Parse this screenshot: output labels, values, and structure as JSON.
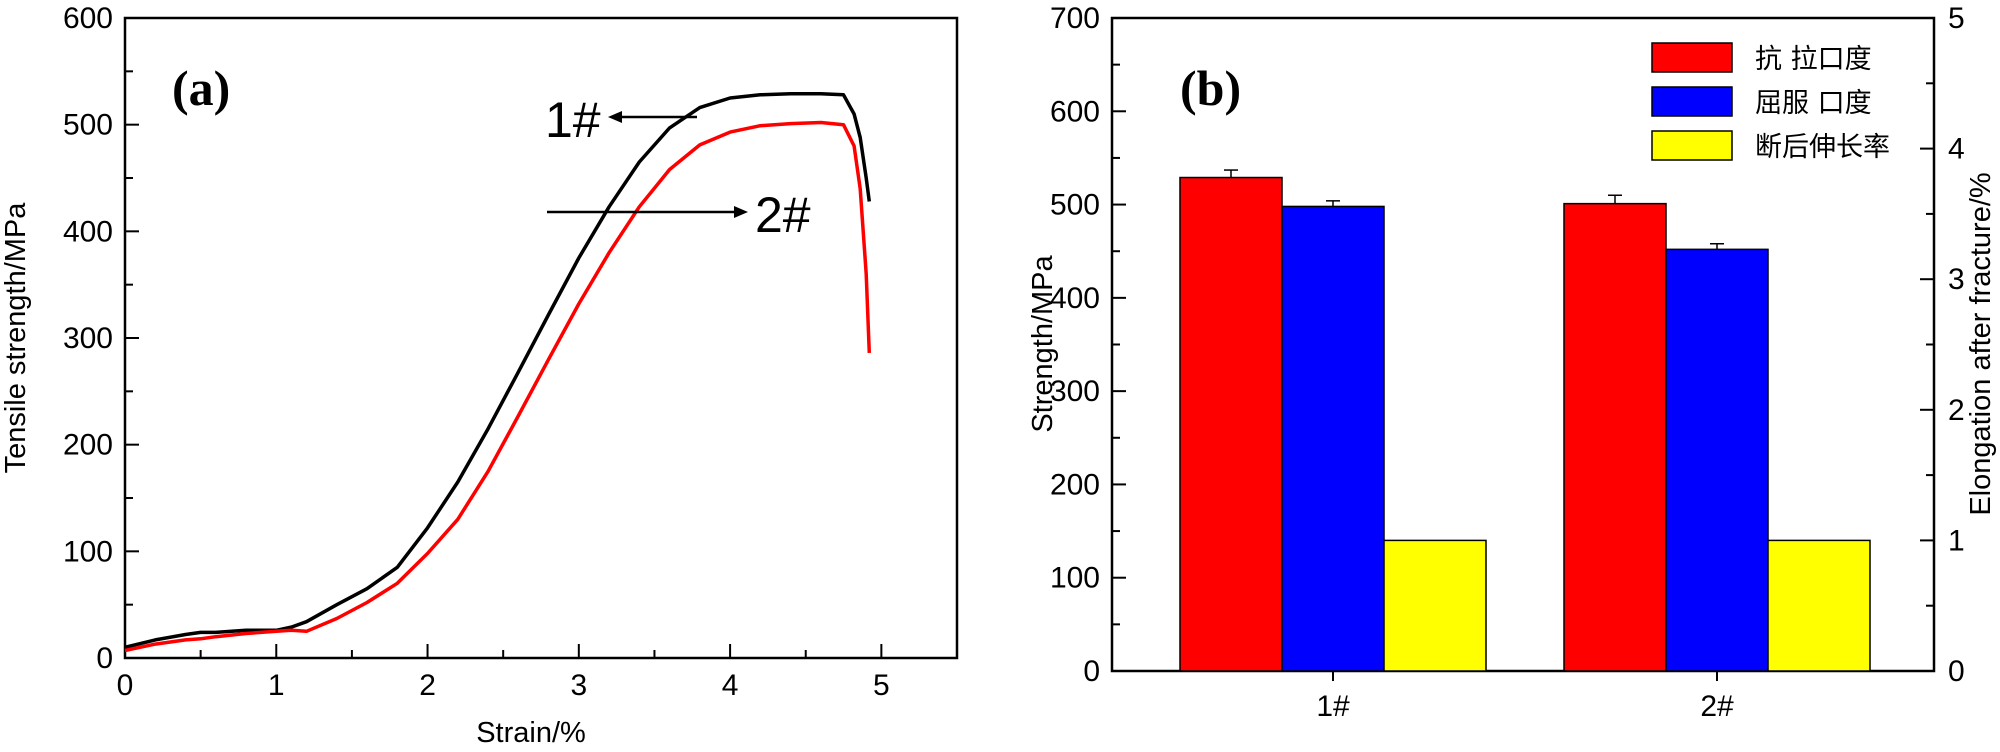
{
  "chart_data": [
    {
      "panel": "(a)",
      "type": "line",
      "xlabel": "Strain/%",
      "ylabel": "Tensile strength/MPa",
      "xlim": [
        0,
        5.5
      ],
      "ylim": [
        0,
        600
      ],
      "xticks": [
        0,
        1,
        2,
        3,
        4,
        5
      ],
      "yticks": [
        0,
        100,
        200,
        300,
        400,
        500,
        600
      ],
      "grid": false,
      "series": [
        {
          "name": "1#",
          "color": "#000000",
          "x": [
            0,
            0.2,
            0.4,
            0.5,
            0.6,
            0.8,
            1.0,
            1.1,
            1.2,
            1.4,
            1.6,
            1.8,
            2.0,
            2.2,
            2.4,
            2.6,
            2.8,
            3.0,
            3.2,
            3.4,
            3.6,
            3.8,
            4.0,
            4.2,
            4.4,
            4.6,
            4.75,
            4.82,
            4.86,
            4.9,
            4.92
          ],
          "y": [
            10,
            17,
            22,
            24,
            24,
            26,
            26,
            29,
            34,
            50,
            65,
            85,
            122,
            165,
            215,
            268,
            322,
            375,
            423,
            465,
            497,
            516,
            525,
            528,
            529,
            529,
            528,
            510,
            488,
            450,
            428
          ]
        },
        {
          "name": "2#",
          "color": "#ff0000",
          "x": [
            0,
            0.2,
            0.4,
            0.5,
            0.6,
            0.8,
            1.0,
            1.1,
            1.2,
            1.4,
            1.6,
            1.8,
            2.0,
            2.2,
            2.4,
            2.6,
            2.8,
            3.0,
            3.2,
            3.4,
            3.6,
            3.8,
            4.0,
            4.2,
            4.4,
            4.6,
            4.75,
            4.82,
            4.86,
            4.9,
            4.92
          ],
          "y": [
            7,
            13,
            17,
            18,
            20,
            23,
            25,
            26,
            25,
            37,
            52,
            70,
            98,
            130,
            175,
            227,
            280,
            332,
            380,
            423,
            458,
            481,
            493,
            499,
            501,
            502,
            500,
            480,
            440,
            360,
            286
          ]
        }
      ],
      "annotations": [
        "1#",
        "2#"
      ]
    },
    {
      "panel": "(b)",
      "type": "bar",
      "categories": [
        "1#",
        "2#"
      ],
      "ylabel": "Strength/MPa",
      "y2label": "Elongation after fracture/%",
      "ylim": [
        0,
        700
      ],
      "y2lim": [
        0,
        5
      ],
      "yticks": [
        0,
        100,
        200,
        300,
        400,
        500,
        600,
        700
      ],
      "y2ticks": [
        0,
        1,
        2,
        3,
        4,
        5
      ],
      "legend_position": "top-right",
      "series": [
        {
          "name": "抗 拉口度",
          "color": "#ff0000",
          "axis": "left",
          "values": [
            529,
            501
          ],
          "errors": [
            8,
            9
          ]
        },
        {
          "name": "屈服 口度",
          "color": "#0000ff",
          "axis": "left",
          "values": [
            498,
            452
          ],
          "errors": [
            6,
            6
          ]
        },
        {
          "name": "断后伸长率",
          "color": "#ffff00",
          "axis": "right",
          "values": [
            1.0,
            1.0
          ]
        }
      ]
    }
  ]
}
